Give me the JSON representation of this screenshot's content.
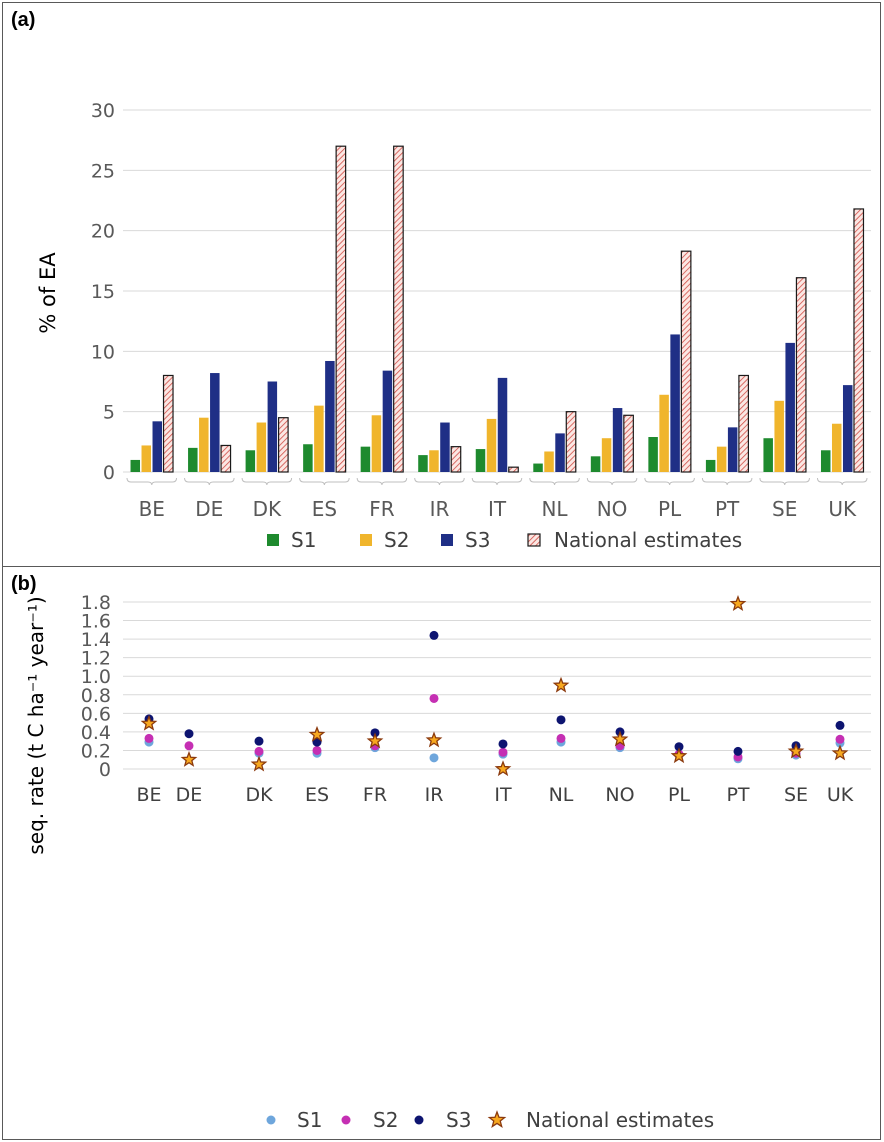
{
  "chart_data": [
    {
      "type": "bar",
      "panel_label": "(a)",
      "ylabel": "% of EA",
      "ylim": [
        0,
        30
      ],
      "yticks": [
        "0",
        "5",
        "10",
        "15",
        "20",
        "25",
        "30"
      ],
      "grid": true,
      "legend": "bottom",
      "categories": [
        "BE",
        "DE",
        "DK",
        "ES",
        "FR",
        "IR",
        "IT",
        "NL",
        "NO",
        "PL",
        "PT",
        "SE",
        "UK"
      ],
      "series": [
        {
          "name": "S1",
          "color": "#1e8a2e",
          "values": [
            1.0,
            2.0,
            1.8,
            2.3,
            2.1,
            1.4,
            1.9,
            0.7,
            1.3,
            2.9,
            1.0,
            2.8,
            1.8
          ]
        },
        {
          "name": "S2",
          "color": "#f0b52c",
          "values": [
            2.2,
            4.5,
            4.1,
            5.5,
            4.7,
            1.8,
            4.4,
            1.7,
            2.8,
            6.4,
            2.1,
            5.9,
            4.0
          ]
        },
        {
          "name": "S3",
          "color": "#1f2f86",
          "values": [
            4.2,
            8.2,
            7.5,
            9.2,
            8.4,
            4.1,
            7.8,
            3.2,
            5.3,
            11.4,
            3.7,
            10.7,
            7.2
          ]
        },
        {
          "name": "National estimates",
          "color": "#e8a3a0",
          "pattern": "hatched",
          "values": [
            8.0,
            2.2,
            4.5,
            27.0,
            27.0,
            2.1,
            0.4,
            5.0,
            4.7,
            18.3,
            8.0,
            16.1,
            21.8
          ]
        }
      ]
    },
    {
      "type": "scatter",
      "panel_label": "(b)",
      "ylabel": "seq. rate (t C ha⁻¹ year⁻¹)",
      "ylim": [
        0,
        1.8
      ],
      "yticks": [
        "0",
        "0.2",
        "0.4",
        "0.6",
        "0.8",
        "1.0",
        "1.2",
        "1.4",
        "1.6",
        "1.8"
      ],
      "grid": true,
      "legend": "bottom",
      "categories": [
        "BE",
        "DE",
        "DK",
        "ES",
        "FR",
        "IR",
        "IT",
        "NL",
        "NO",
        "PL",
        "PT",
        "SE",
        "UK"
      ],
      "series": [
        {
          "name": "S1",
          "color": "#6ea6dc",
          "marker": "circle",
          "values": [
            0.29,
            null,
            0.17,
            0.17,
            0.23,
            0.12,
            0.16,
            0.29,
            0.23,
            0.15,
            0.11,
            0.15,
            0.28
          ]
        },
        {
          "name": "S2",
          "color": "#c52fb3",
          "marker": "circle",
          "values": [
            0.33,
            0.25,
            0.19,
            0.2,
            0.25,
            0.76,
            0.18,
            0.33,
            0.25,
            0.16,
            0.13,
            0.17,
            0.32
          ]
        },
        {
          "name": "S3",
          "color": "#0d1470",
          "marker": "circle",
          "values": [
            0.54,
            0.38,
            0.3,
            0.29,
            0.39,
            1.44,
            0.27,
            0.53,
            0.4,
            0.24,
            0.19,
            0.25,
            0.47
          ]
        },
        {
          "name": "National estimates",
          "color": "#f7a81f",
          "stroke": "#8b3a0e",
          "marker": "star",
          "values": [
            0.49,
            0.1,
            0.05,
            0.37,
            0.3,
            0.31,
            0.0,
            0.9,
            0.32,
            0.14,
            1.78,
            0.19,
            0.17
          ]
        }
      ]
    }
  ]
}
